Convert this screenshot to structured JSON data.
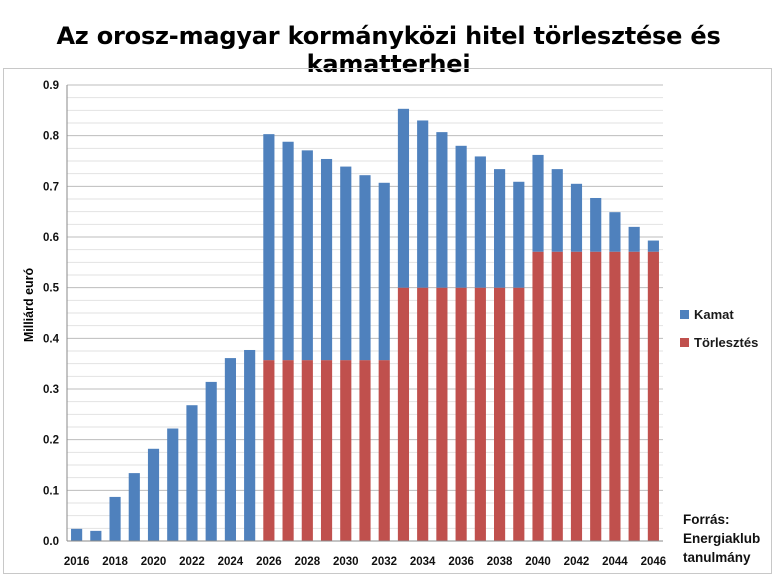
{
  "chart_data": {
    "type": "bar",
    "stacked": true,
    "title": "Az orosz-magyar kormányközi hitel törlesztése és kamatterhei",
    "ylabel": "Milliárd euró",
    "xlabel": "",
    "ylim": [
      0,
      0.9
    ],
    "yticks": [
      "0.0",
      "0.1",
      "0.2",
      "0.3",
      "0.4",
      "0.5",
      "0.6",
      "0.7",
      "0.8",
      "0.9"
    ],
    "grid": true,
    "legend_position": "right",
    "categories": [
      "2016",
      "2017",
      "2018",
      "2019",
      "2020",
      "2021",
      "2022",
      "2023",
      "2024",
      "2025",
      "2026",
      "2027",
      "2028",
      "2029",
      "2030",
      "2031",
      "2032",
      "2033",
      "2034",
      "2035",
      "2036",
      "2037",
      "2038",
      "2039",
      "2040",
      "2041",
      "2042",
      "2043",
      "2044",
      "2045",
      "2046"
    ],
    "xtick_labels": [
      "2016",
      "2018",
      "2020",
      "2022",
      "2024",
      "2026",
      "2028",
      "2030",
      "2032",
      "2034",
      "2036",
      "2038",
      "2040",
      "2042",
      "2044",
      "2046"
    ],
    "series": [
      {
        "name": "Törlesztés",
        "color": "#c0504d",
        "values": [
          0,
          0,
          0,
          0,
          0,
          0,
          0,
          0,
          0,
          0,
          0.357,
          0.357,
          0.357,
          0.357,
          0.357,
          0.357,
          0.357,
          0.5,
          0.5,
          0.5,
          0.5,
          0.5,
          0.5,
          0.5,
          0.571,
          0.571,
          0.571,
          0.571,
          0.571,
          0.571,
          0.571
        ]
      },
      {
        "name": "Kamat",
        "color": "#4f81bd",
        "values": [
          0.024,
          0.02,
          0.087,
          0.134,
          0.182,
          0.222,
          0.268,
          0.314,
          0.361,
          0.377,
          0.446,
          0.431,
          0.414,
          0.397,
          0.382,
          0.365,
          0.35,
          0.353,
          0.33,
          0.307,
          0.28,
          0.259,
          0.234,
          0.209,
          0.191,
          0.163,
          0.134,
          0.106,
          0.078,
          0.049,
          0.022
        ]
      }
    ],
    "legend": [
      "Kamat",
      "Törlesztés"
    ]
  },
  "source": {
    "line1": "Forrás:",
    "line2": "Energiaklub",
    "line3": "tanulmány"
  }
}
